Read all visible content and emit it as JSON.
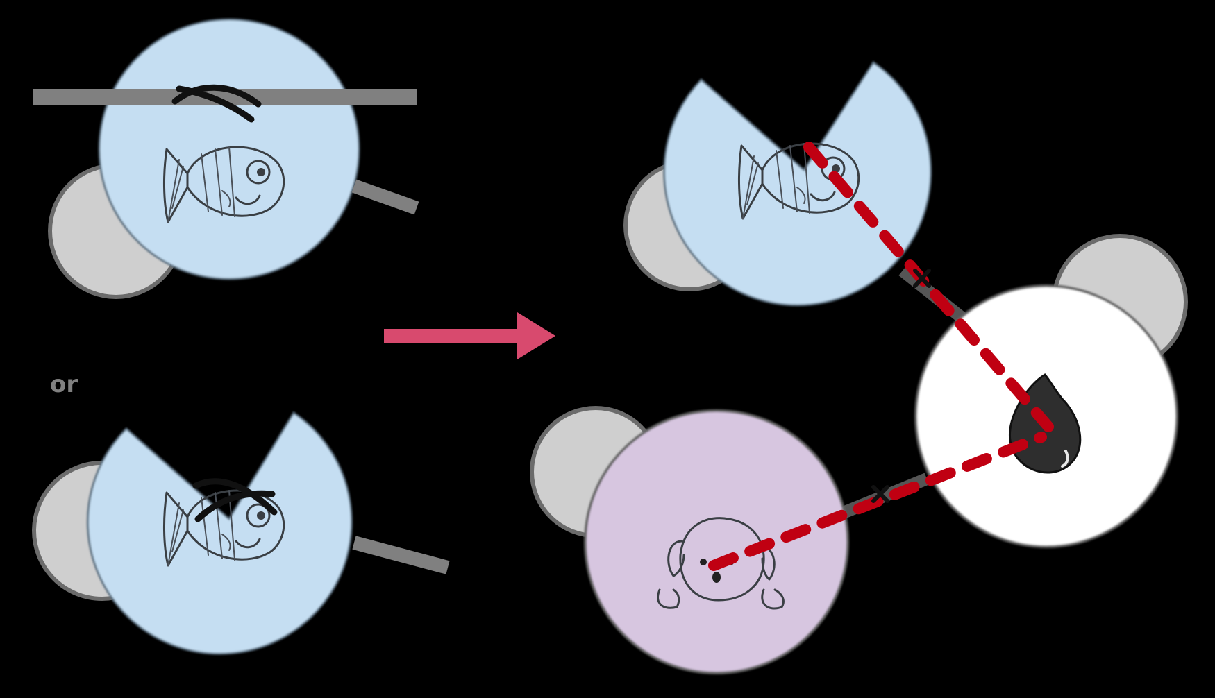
{
  "separator_label": "or",
  "colors": {
    "background": "#000000",
    "blue_disc": "#c5def2",
    "purple_disc": "#d7c6e0",
    "white_disc": "#ffffff",
    "gray_disc": "#cfcfcf",
    "gray_stroke": "#6b6b6b",
    "gray_bar": "#808080",
    "arrow": "#d84a6e",
    "dashed_line": "#c00012",
    "cross_mark": "#111111",
    "droplet": "#2e2e2e"
  },
  "icons": {
    "fish": "fish-icon",
    "dog": "dog-face-icon",
    "droplet": "droplet-icon",
    "cross": "x-mark-icon",
    "arrow": "arrow-right-icon"
  },
  "panels": {
    "left_top": "blocked-binding-site",
    "left_bottom": "occupied-cleft",
    "right": "bridged-complex"
  }
}
